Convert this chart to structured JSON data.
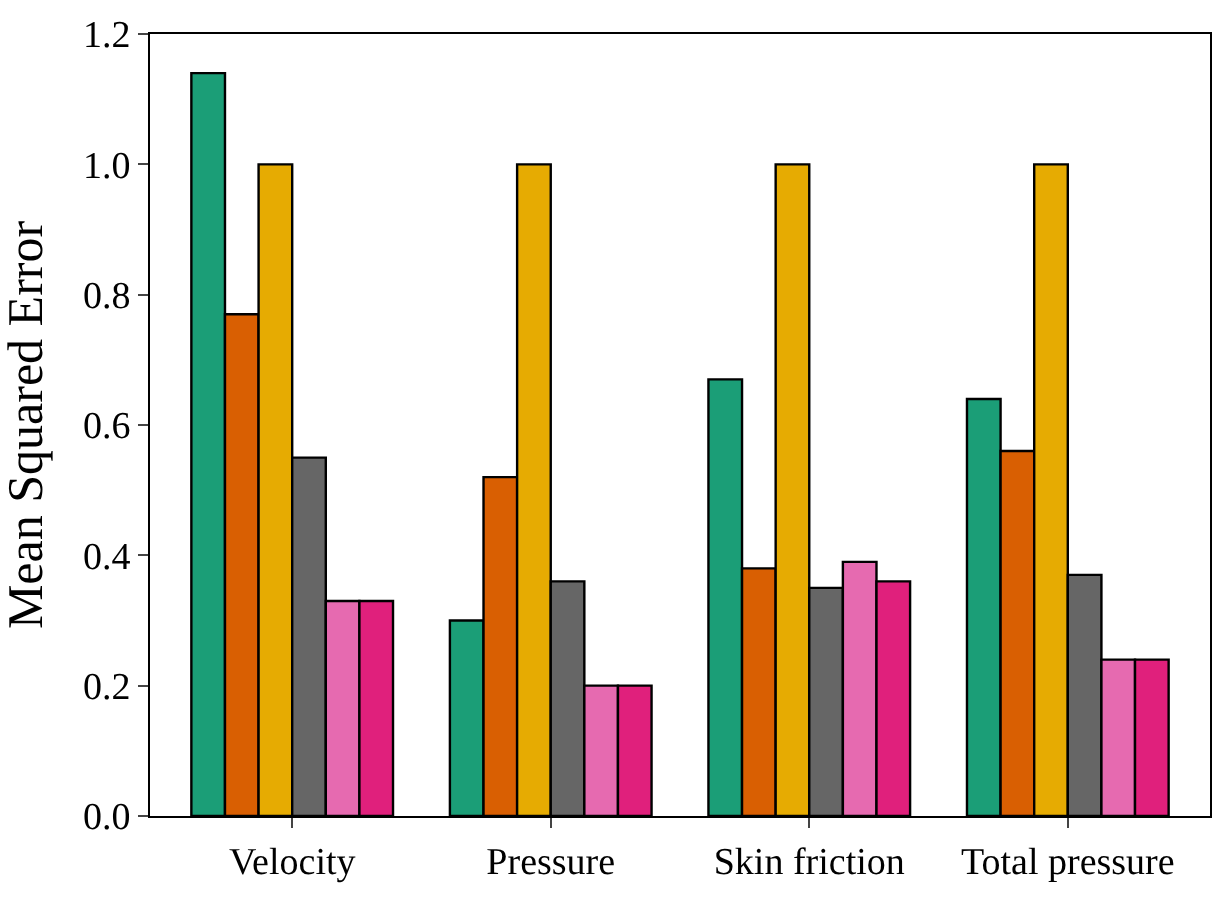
{
  "chart_data": {
    "type": "bar",
    "ylabel": "Mean Squared Error",
    "categories": [
      "Velocity",
      "Pressure",
      "Skin friction",
      "Total pressure"
    ],
    "series": [
      {
        "color": "#1b9e77",
        "values": [
          1.14,
          0.3,
          0.67,
          0.64
        ]
      },
      {
        "color": "#d95f02",
        "values": [
          0.77,
          0.52,
          0.38,
          0.56
        ]
      },
      {
        "color": "#e6ab02",
        "values": [
          1.0,
          1.0,
          1.0,
          1.0
        ]
      },
      {
        "color": "#666666",
        "values": [
          0.55,
          0.36,
          0.35,
          0.37
        ]
      },
      {
        "color": "#e66ab0",
        "values": [
          0.33,
          0.2,
          0.39,
          0.24
        ]
      },
      {
        "color": "#e0207c",
        "values": [
          0.33,
          0.2,
          0.36,
          0.24
        ]
      }
    ],
    "ylim": [
      0,
      1.2
    ],
    "yticks": [
      {
        "value": 0,
        "label": "0.0"
      },
      {
        "value": 0.2,
        "label": "0.2"
      },
      {
        "value": 0.4,
        "label": "0.4"
      },
      {
        "value": 0.6,
        "label": "0.6"
      },
      {
        "value": 0.8,
        "label": "0.8"
      },
      {
        "value": 1.0,
        "label": "1.0"
      },
      {
        "value": 1.2,
        "label": "1.2"
      }
    ]
  }
}
